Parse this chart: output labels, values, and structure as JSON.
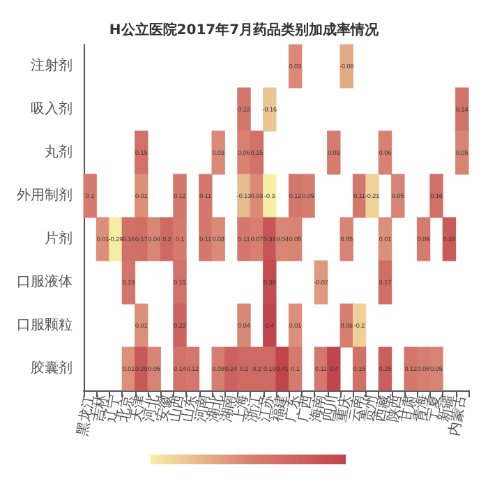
{
  "chart_data": {
    "type": "heatmap",
    "title": "H公立医院2017年7月药品类别加成率情况",
    "categories": [
      "黑龙江",
      "吉林",
      "辽宁",
      "北京",
      "天津",
      "河北",
      "安徽",
      "山西",
      "山东",
      "河南",
      "湖北",
      "湖南",
      "上海",
      "浙江",
      "江苏",
      "福建",
      "广东",
      "广西",
      "海南",
      "四川",
      "重庆",
      "云南",
      "贵州",
      "西藏",
      "陕西",
      "甘肃",
      "青海",
      "宁夏",
      "新疆",
      "内蒙古"
    ],
    "y_categories": [
      "注射剂",
      "吸入剂",
      "丸剂",
      "外用制剂",
      "片剂",
      "口服液体",
      "口服颗粒",
      "胶囊剂"
    ],
    "cells": [
      [
        null,
        null,
        null,
        null,
        null,
        null,
        null,
        null,
        null,
        null,
        null,
        null,
        null,
        null,
        null,
        null,
        0.03,
        null,
        null,
        null,
        -0.08,
        null,
        null,
        null,
        null,
        null,
        null,
        null,
        null,
        null
      ],
      [
        null,
        null,
        null,
        null,
        null,
        null,
        null,
        null,
        null,
        null,
        null,
        null,
        0.13,
        null,
        -0.16,
        null,
        null,
        null,
        null,
        null,
        null,
        null,
        null,
        null,
        null,
        null,
        null,
        null,
        null,
        0.14
      ],
      [
        null,
        null,
        null,
        null,
        0.15,
        null,
        null,
        null,
        null,
        null,
        0.03,
        null,
        0.06,
        0.15,
        null,
        null,
        null,
        null,
        null,
        0.09,
        null,
        null,
        null,
        0.06,
        null,
        null,
        null,
        null,
        null,
        0.05
      ],
      [
        0.1,
        null,
        null,
        null,
        0.01,
        null,
        null,
        0.12,
        null,
        0.11,
        null,
        null,
        -0.13,
        0.03,
        -0.3,
        null,
        0.12,
        0.09,
        null,
        null,
        null,
        0.11,
        -0.21,
        null,
        0.05,
        null,
        null,
        0.16,
        null,
        null
      ],
      [
        null,
        0.01,
        -0.29,
        0.16,
        0.17,
        0.04,
        0.2,
        0.1,
        null,
        0.11,
        0.03,
        null,
        0.11,
        0.07,
        0.31,
        0.04,
        0.05,
        null,
        null,
        null,
        0.05,
        null,
        null,
        0.01,
        null,
        null,
        0.09,
        null,
        0.28,
        null
      ],
      [
        null,
        null,
        null,
        0.13,
        null,
        null,
        null,
        0.15,
        null,
        null,
        null,
        null,
        null,
        null,
        0.36,
        null,
        null,
        null,
        -0.02,
        null,
        null,
        null,
        null,
        0.17,
        null,
        null,
        null,
        null,
        null,
        null
      ],
      [
        null,
        null,
        null,
        null,
        0.01,
        null,
        null,
        0.23,
        null,
        null,
        null,
        null,
        0.04,
        null,
        0.4,
        null,
        0.01,
        null,
        null,
        null,
        0.08,
        -0.2,
        null,
        null,
        null,
        null,
        null,
        null,
        null,
        null
      ],
      [
        null,
        null,
        null,
        0.01,
        0.29,
        0.05,
        null,
        0.14,
        0.12,
        null,
        0.08,
        0.24,
        0.2,
        0.2,
        0.19,
        0.41,
        0.1,
        null,
        0.11,
        0.4,
        null,
        0.15,
        null,
        0.25,
        null,
        0.12,
        0.08,
        0.05,
        null,
        null
      ]
    ],
    "colors": [
      "#f6efa6",
      "#d88273",
      "#bf444c"
    ],
    "data_labels": true
  }
}
